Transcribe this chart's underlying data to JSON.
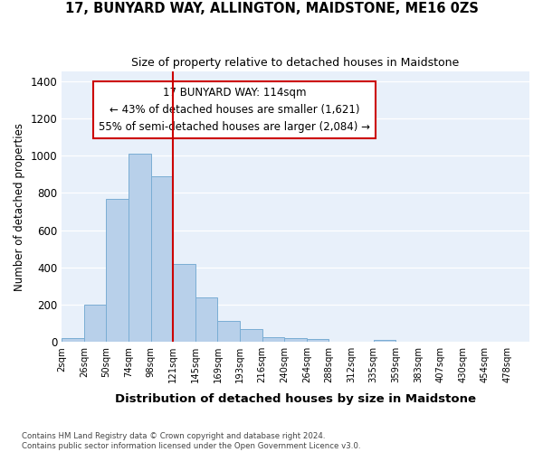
{
  "title": "17, BUNYARD WAY, ALLINGTON, MAIDSTONE, ME16 0ZS",
  "subtitle": "Size of property relative to detached houses in Maidstone",
  "xlabel": "Distribution of detached houses by size in Maidstone",
  "ylabel": "Number of detached properties",
  "bar_color": "#b8d0ea",
  "bar_edge_color": "#7aadd4",
  "background_color": "#e8f0fa",
  "grid_color": "#ffffff",
  "annotation_box_color": "#cc0000",
  "vline_color": "#cc0000",
  "vline_position": 5,
  "annotation_text": "17 BUNYARD WAY: 114sqm\n← 43% of detached houses are smaller (1,621)\n55% of semi-detached houses are larger (2,084) →",
  "bin_edges": [
    "2sqm",
    "26sqm",
    "50sqm",
    "74sqm",
    "98sqm",
    "121sqm",
    "145sqm",
    "169sqm",
    "193sqm",
    "216sqm",
    "240sqm",
    "264sqm",
    "288sqm",
    "312sqm",
    "335sqm",
    "359sqm",
    "383sqm",
    "407sqm",
    "430sqm",
    "454sqm",
    "478sqm"
  ],
  "bar_heights": [
    20,
    200,
    770,
    1010,
    890,
    420,
    240,
    110,
    70,
    25,
    20,
    15,
    0,
    0,
    10,
    0,
    0,
    0,
    0,
    0
  ],
  "ylim": [
    0,
    1450
  ],
  "yticks": [
    0,
    200,
    400,
    600,
    800,
    1000,
    1200,
    1400
  ],
  "footnote": "Contains HM Land Registry data © Crown copyright and database right 2024.\nContains public sector information licensed under the Open Government Licence v3.0."
}
